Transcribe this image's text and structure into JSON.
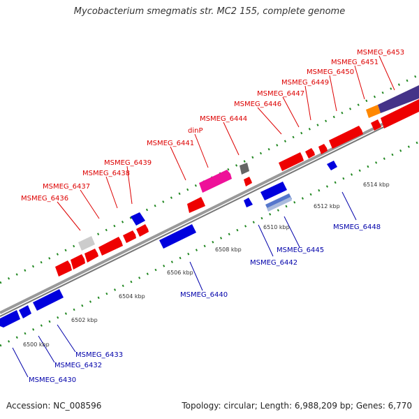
{
  "title": "Mycobacterium smegmatis str. MC2 155, complete genome",
  "footer": {
    "accession": "Accession: NC_008596",
    "summary": "Topology: circular; Length: 6,988,209 bp; Genes: 6,770"
  },
  "colors": {
    "forward_label": "#dd0000",
    "reverse_label": "#0000aa",
    "forward_gene": "#ee0000",
    "reverse_gene": "#0000dd",
    "backbone": "#999999",
    "tick_dots": "#228822"
  },
  "scale": {
    "unit": "kbp",
    "ticks": [
      "6500 kbp",
      "6502 kbp",
      "6504 kbp",
      "6506 kbp",
      "6508 kbp",
      "6510 kbp",
      "6512 kbp",
      "6514 kbp"
    ]
  },
  "forward_labels": [
    "MSMEG_6436",
    "MSMEG_6437",
    "MSMEG_6438",
    "MSMEG_6439",
    "MSMEG_6441",
    "dinP",
    "MSMEG_6444",
    "MSMEG_6446",
    "MSMEG_6447",
    "MSMEG_6449",
    "MSMEG_6450",
    "MSMEG_6451",
    "MSMEG_6453"
  ],
  "reverse_labels": [
    "MSMEG_6430",
    "MSMEG_6432",
    "MSMEG_6433",
    "MSMEG_6440",
    "MSMEG_6442",
    "MSMEG_6445",
    "MSMEG_6448"
  ]
}
